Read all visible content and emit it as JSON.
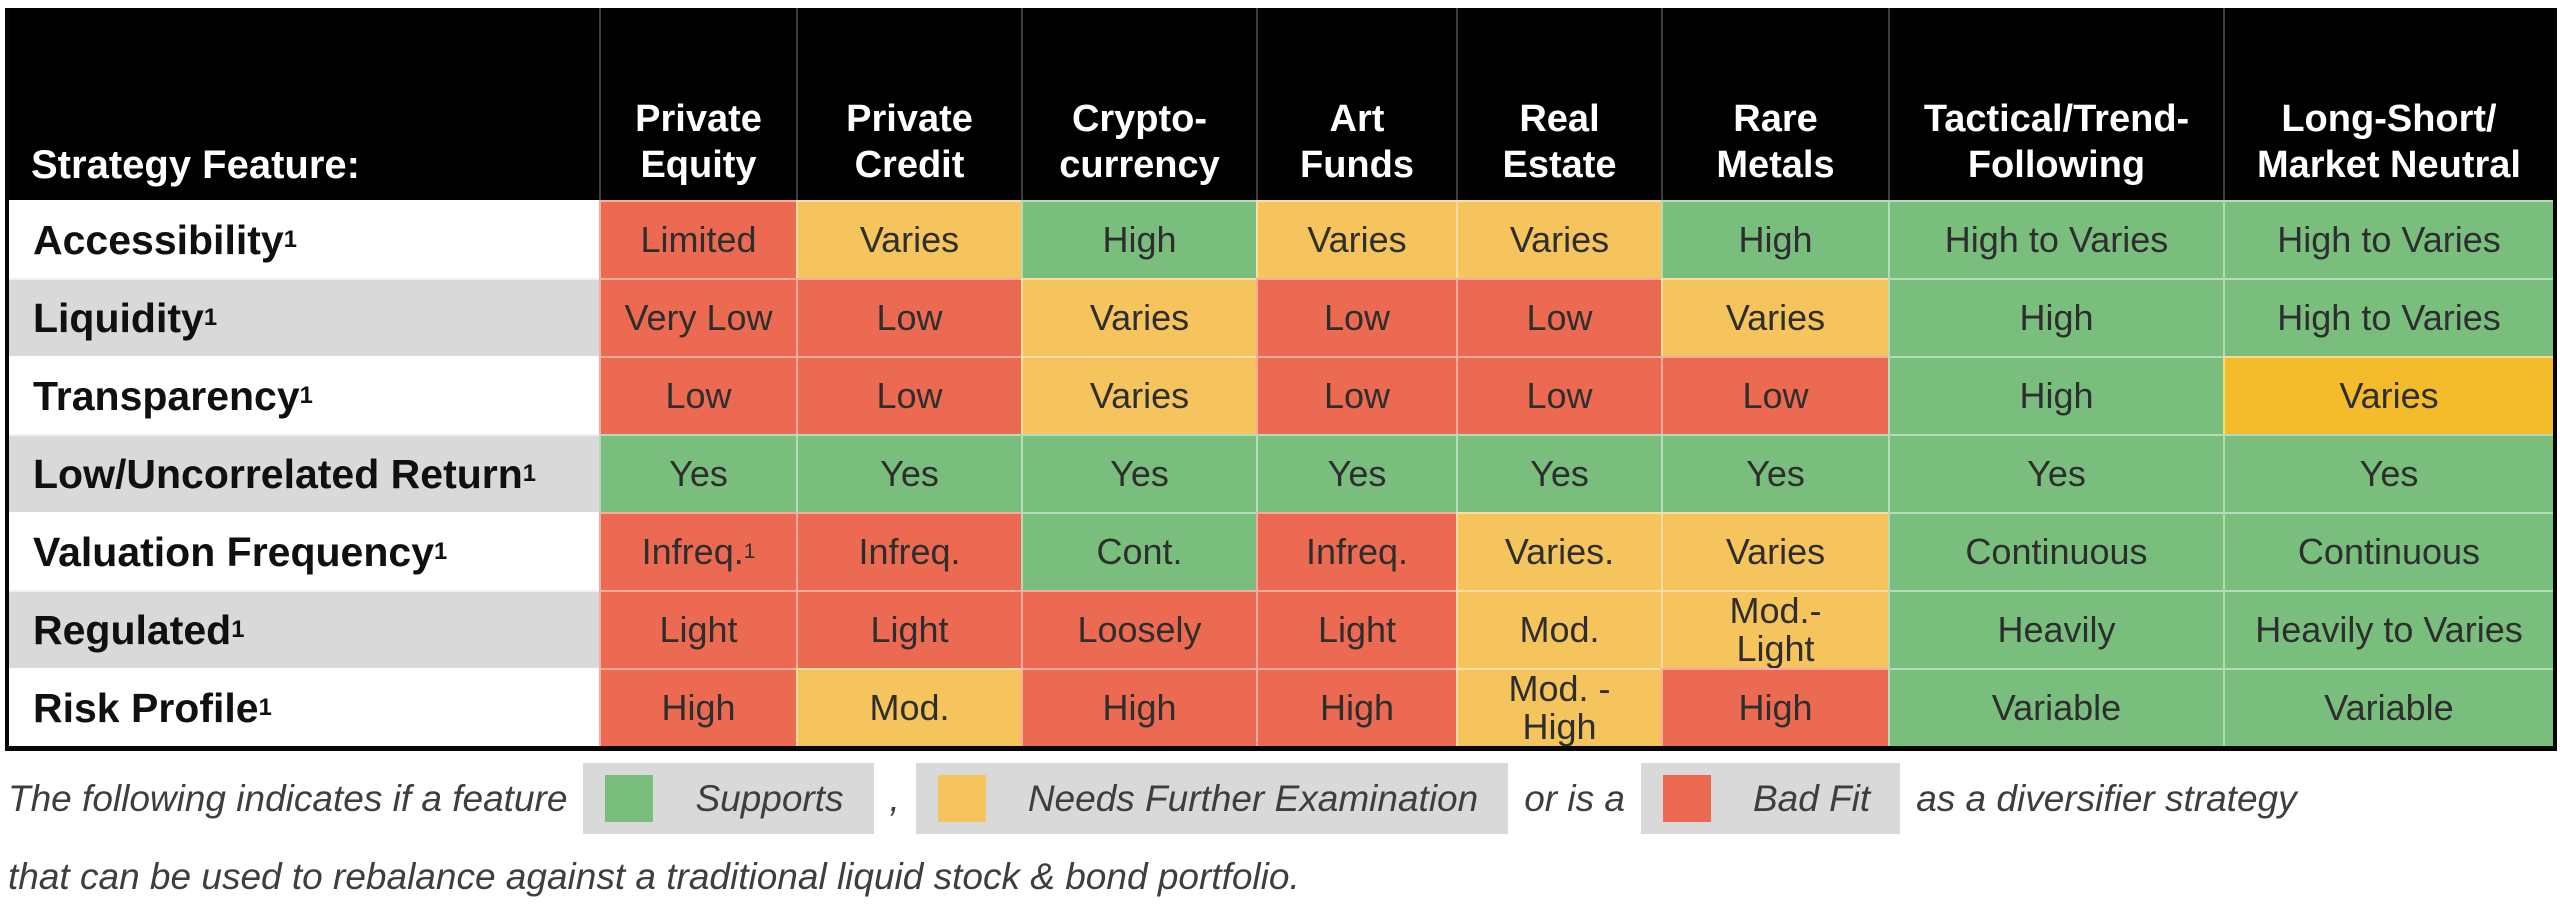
{
  "colors": {
    "supports": "#7ABE7E",
    "needs_examination": "#F6C45C",
    "needs_examination_strong": "#F4BB2B",
    "bad_fit": "#EC6A52",
    "header_bg": "#000000",
    "row_alt": "#D9D9D9",
    "legend_chip_bg": "#D9D9D9"
  },
  "chart_data": {
    "type": "table",
    "corner_label": "Strategy Feature:",
    "columns": [
      "Private\nEquity",
      "Private\nCredit",
      "Crypto-\ncurrency",
      "Art\nFunds",
      "Real\nEstate",
      "Rare\nMetals",
      "Tactical/Trend-\nFollowing",
      "Long-Short/\nMarket Neutral"
    ],
    "status_meaning": {
      "supports": "Supports",
      "examine": "Needs Further Examination",
      "bad": "Bad Fit"
    },
    "rows": [
      {
        "label": "Accessibility",
        "label_sup": "1",
        "cells": [
          {
            "text": "Limited",
            "status": "bad"
          },
          {
            "text": "Varies",
            "status": "examine"
          },
          {
            "text": "High",
            "status": "supports"
          },
          {
            "text": "Varies",
            "status": "examine"
          },
          {
            "text": "Varies",
            "status": "examine"
          },
          {
            "text": "High",
            "status": "supports"
          },
          {
            "text": "High to Varies",
            "status": "supports"
          },
          {
            "text": "High to Varies",
            "status": "supports"
          }
        ]
      },
      {
        "label": "Liquidity",
        "label_sup": "1",
        "cells": [
          {
            "text": "Very Low",
            "status": "bad"
          },
          {
            "text": "Low",
            "status": "bad"
          },
          {
            "text": "Varies",
            "status": "examine"
          },
          {
            "text": "Low",
            "status": "bad"
          },
          {
            "text": "Low",
            "status": "bad"
          },
          {
            "text": "Varies",
            "status": "examine"
          },
          {
            "text": "High",
            "status": "supports"
          },
          {
            "text": "High to Varies",
            "status": "supports"
          }
        ]
      },
      {
        "label": "Transparency",
        "label_sup": "1",
        "cells": [
          {
            "text": "Low",
            "status": "bad"
          },
          {
            "text": "Low",
            "status": "bad"
          },
          {
            "text": "Varies",
            "status": "examine"
          },
          {
            "text": "Low",
            "status": "bad"
          },
          {
            "text": "Low",
            "status": "bad"
          },
          {
            "text": "Low",
            "status": "bad"
          },
          {
            "text": "High",
            "status": "supports"
          },
          {
            "text": "Varies",
            "status": "examine-strong"
          }
        ]
      },
      {
        "label": "Low/Uncorrelated Return",
        "label_sup": "1",
        "cells": [
          {
            "text": "Yes",
            "status": "supports"
          },
          {
            "text": "Yes",
            "status": "supports"
          },
          {
            "text": "Yes",
            "status": "supports"
          },
          {
            "text": "Yes",
            "status": "supports"
          },
          {
            "text": "Yes",
            "status": "supports"
          },
          {
            "text": "Yes",
            "status": "supports"
          },
          {
            "text": "Yes",
            "status": "supports"
          },
          {
            "text": "Yes",
            "status": "supports"
          }
        ]
      },
      {
        "label": "Valuation Frequency",
        "label_sup": "1",
        "cells": [
          {
            "text": "Infreq.",
            "sup": "1",
            "status": "bad"
          },
          {
            "text": "Infreq.",
            "status": "bad"
          },
          {
            "text": "Cont.",
            "status": "supports"
          },
          {
            "text": "Infreq.",
            "status": "bad"
          },
          {
            "text": "Varies.",
            "status": "examine"
          },
          {
            "text": "Varies",
            "status": "examine"
          },
          {
            "text": "Continuous",
            "status": "supports"
          },
          {
            "text": "Continuous",
            "status": "supports"
          }
        ]
      },
      {
        "label": "Regulated",
        "label_sup": "1",
        "cells": [
          {
            "text": "Light",
            "status": "bad"
          },
          {
            "text": "Light",
            "status": "bad"
          },
          {
            "text": "Loosely",
            "status": "bad"
          },
          {
            "text": "Light",
            "status": "bad"
          },
          {
            "text": "Mod.",
            "status": "examine"
          },
          {
            "text": "Mod.-\nLight",
            "status": "examine"
          },
          {
            "text": "Heavily",
            "status": "supports"
          },
          {
            "text": "Heavily to Varies",
            "status": "supports"
          }
        ]
      },
      {
        "label": "Risk Profile",
        "label_sup": "1",
        "cells": [
          {
            "text": "High",
            "status": "bad"
          },
          {
            "text": "Mod.",
            "status": "examine"
          },
          {
            "text": "High",
            "status": "bad"
          },
          {
            "text": "High",
            "status": "bad"
          },
          {
            "text": "Mod. -\nHigh",
            "status": "examine"
          },
          {
            "text": "High",
            "status": "bad"
          },
          {
            "text": "Variable",
            "status": "supports"
          },
          {
            "text": "Variable",
            "status": "supports"
          }
        ]
      }
    ]
  },
  "legend": {
    "prefix": "The following indicates if a feature",
    "items": [
      {
        "label": "Supports",
        "status": "supports"
      },
      {
        "label": "Needs Further Examination",
        "status": "examine"
      },
      {
        "label": "Bad Fit",
        "status": "bad"
      }
    ],
    "comma": ",",
    "or_text": "or is a",
    "suffix": "as a diversifier strategy",
    "line2": "that can be used to rebalance against a traditional liquid stock & bond portfolio."
  }
}
